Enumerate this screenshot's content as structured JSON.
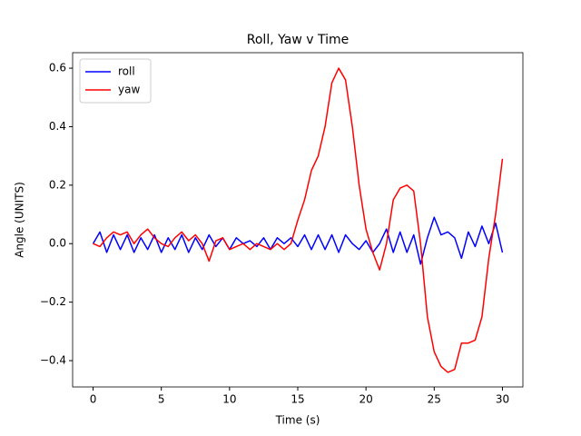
{
  "chart_data": {
    "type": "line",
    "title": "Roll, Yaw v Time",
    "xlabel": "Time (s)",
    "ylabel": "Angle (UNITS)",
    "x": [
      0,
      0.5,
      1,
      1.5,
      2,
      2.5,
      3,
      3.5,
      4,
      4.5,
      5,
      5.5,
      6,
      6.5,
      7,
      7.5,
      8,
      8.5,
      9,
      9.5,
      10,
      10.5,
      11,
      11.5,
      12,
      12.5,
      13,
      13.5,
      14,
      14.5,
      15,
      15.5,
      16,
      16.5,
      17,
      17.5,
      18,
      18.5,
      19,
      19.5,
      20,
      20.5,
      21,
      21.5,
      22,
      22.5,
      23,
      23.5,
      24,
      24.5,
      25,
      25.5,
      26,
      26.5,
      27,
      27.5,
      28,
      28.5,
      29,
      29.5,
      30
    ],
    "series": [
      {
        "name": "roll",
        "color": "#0000ff",
        "values": [
          0,
          0.04,
          -0.03,
          0.03,
          -0.02,
          0.03,
          -0.03,
          0.02,
          -0.02,
          0.03,
          -0.03,
          0.02,
          -0.02,
          0.03,
          -0.03,
          0.02,
          -0.02,
          0.03,
          -0.01,
          0.02,
          -0.02,
          0.02,
          0,
          0.01,
          -0.01,
          0.02,
          -0.02,
          0.02,
          0,
          0.02,
          -0.01,
          0.03,
          -0.02,
          0.03,
          -0.02,
          0.03,
          -0.03,
          0.03,
          0,
          -0.02,
          0.01,
          -0.03,
          0,
          0.05,
          -0.03,
          0.04,
          -0.03,
          0.03,
          -0.07,
          0.02,
          0.09,
          0.03,
          0.04,
          0.02,
          -0.05,
          0.04,
          -0.01,
          0.06,
          0,
          0.07,
          -0.03
        ]
      },
      {
        "name": "yaw",
        "color": "#ff0000",
        "values": [
          0,
          -0.01,
          0.02,
          0.04,
          0.03,
          0.04,
          0,
          0.03,
          0.05,
          0.02,
          0,
          -0.01,
          0.02,
          0.04,
          0.01,
          0.03,
          0,
          -0.06,
          0.01,
          0.02,
          -0.02,
          -0.01,
          0,
          -0.02,
          0,
          -0.01,
          -0.02,
          0,
          -0.02,
          0,
          0.08,
          0.15,
          0.25,
          0.3,
          0.4,
          0.55,
          0.6,
          0.56,
          0.4,
          0.2,
          0.05,
          -0.03,
          -0.09,
          0,
          0.15,
          0.19,
          0.2,
          0.18,
          0,
          -0.25,
          -0.37,
          -0.42,
          -0.44,
          -0.43,
          -0.34,
          -0.34,
          -0.33,
          -0.25,
          -0.05,
          0.1,
          0.29
        ]
      }
    ],
    "xlim": [
      -1.5,
      31.5
    ],
    "xticks": [
      0,
      5,
      10,
      15,
      20,
      25,
      30
    ],
    "ylim": [
      -0.49,
      0.653
    ],
    "yticks": [
      {
        "value": -0.4,
        "label": "−0.4"
      },
      {
        "value": -0.2,
        "label": "−0.2"
      },
      {
        "value": 0,
        "label": "0.0"
      },
      {
        "value": 0.2,
        "label": "0.2"
      },
      {
        "value": 0.4,
        "label": "0.4"
      },
      {
        "value": 0.6,
        "label": "0.6"
      }
    ],
    "grid": false,
    "legend": "upper-left"
  }
}
